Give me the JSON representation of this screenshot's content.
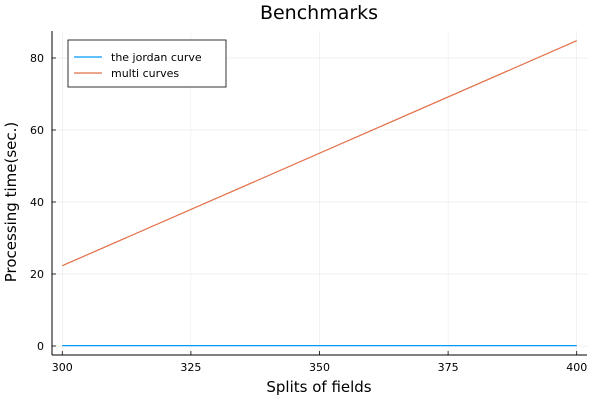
{
  "chart_data": {
    "type": "line",
    "title": "Benchmarks",
    "xlabel": "Splits of fields",
    "ylabel": "Processing time(sec.)",
    "xlim": [
      298,
      402
    ],
    "ylim": [
      -2.5,
      87.5
    ],
    "xticks": [
      300,
      325,
      350,
      375,
      400
    ],
    "yticks": [
      0,
      20,
      40,
      60,
      80
    ],
    "grid": true,
    "legend_position": "top-left",
    "series": [
      {
        "name": "the jordan curve",
        "color": "#009af9",
        "x": [
          300,
          400
        ],
        "y": [
          0.1,
          0.1
        ]
      },
      {
        "name": "multi curves",
        "color": "#e26f46",
        "x": [
          300,
          400
        ],
        "y": [
          22.3,
          84.8
        ]
      }
    ]
  }
}
